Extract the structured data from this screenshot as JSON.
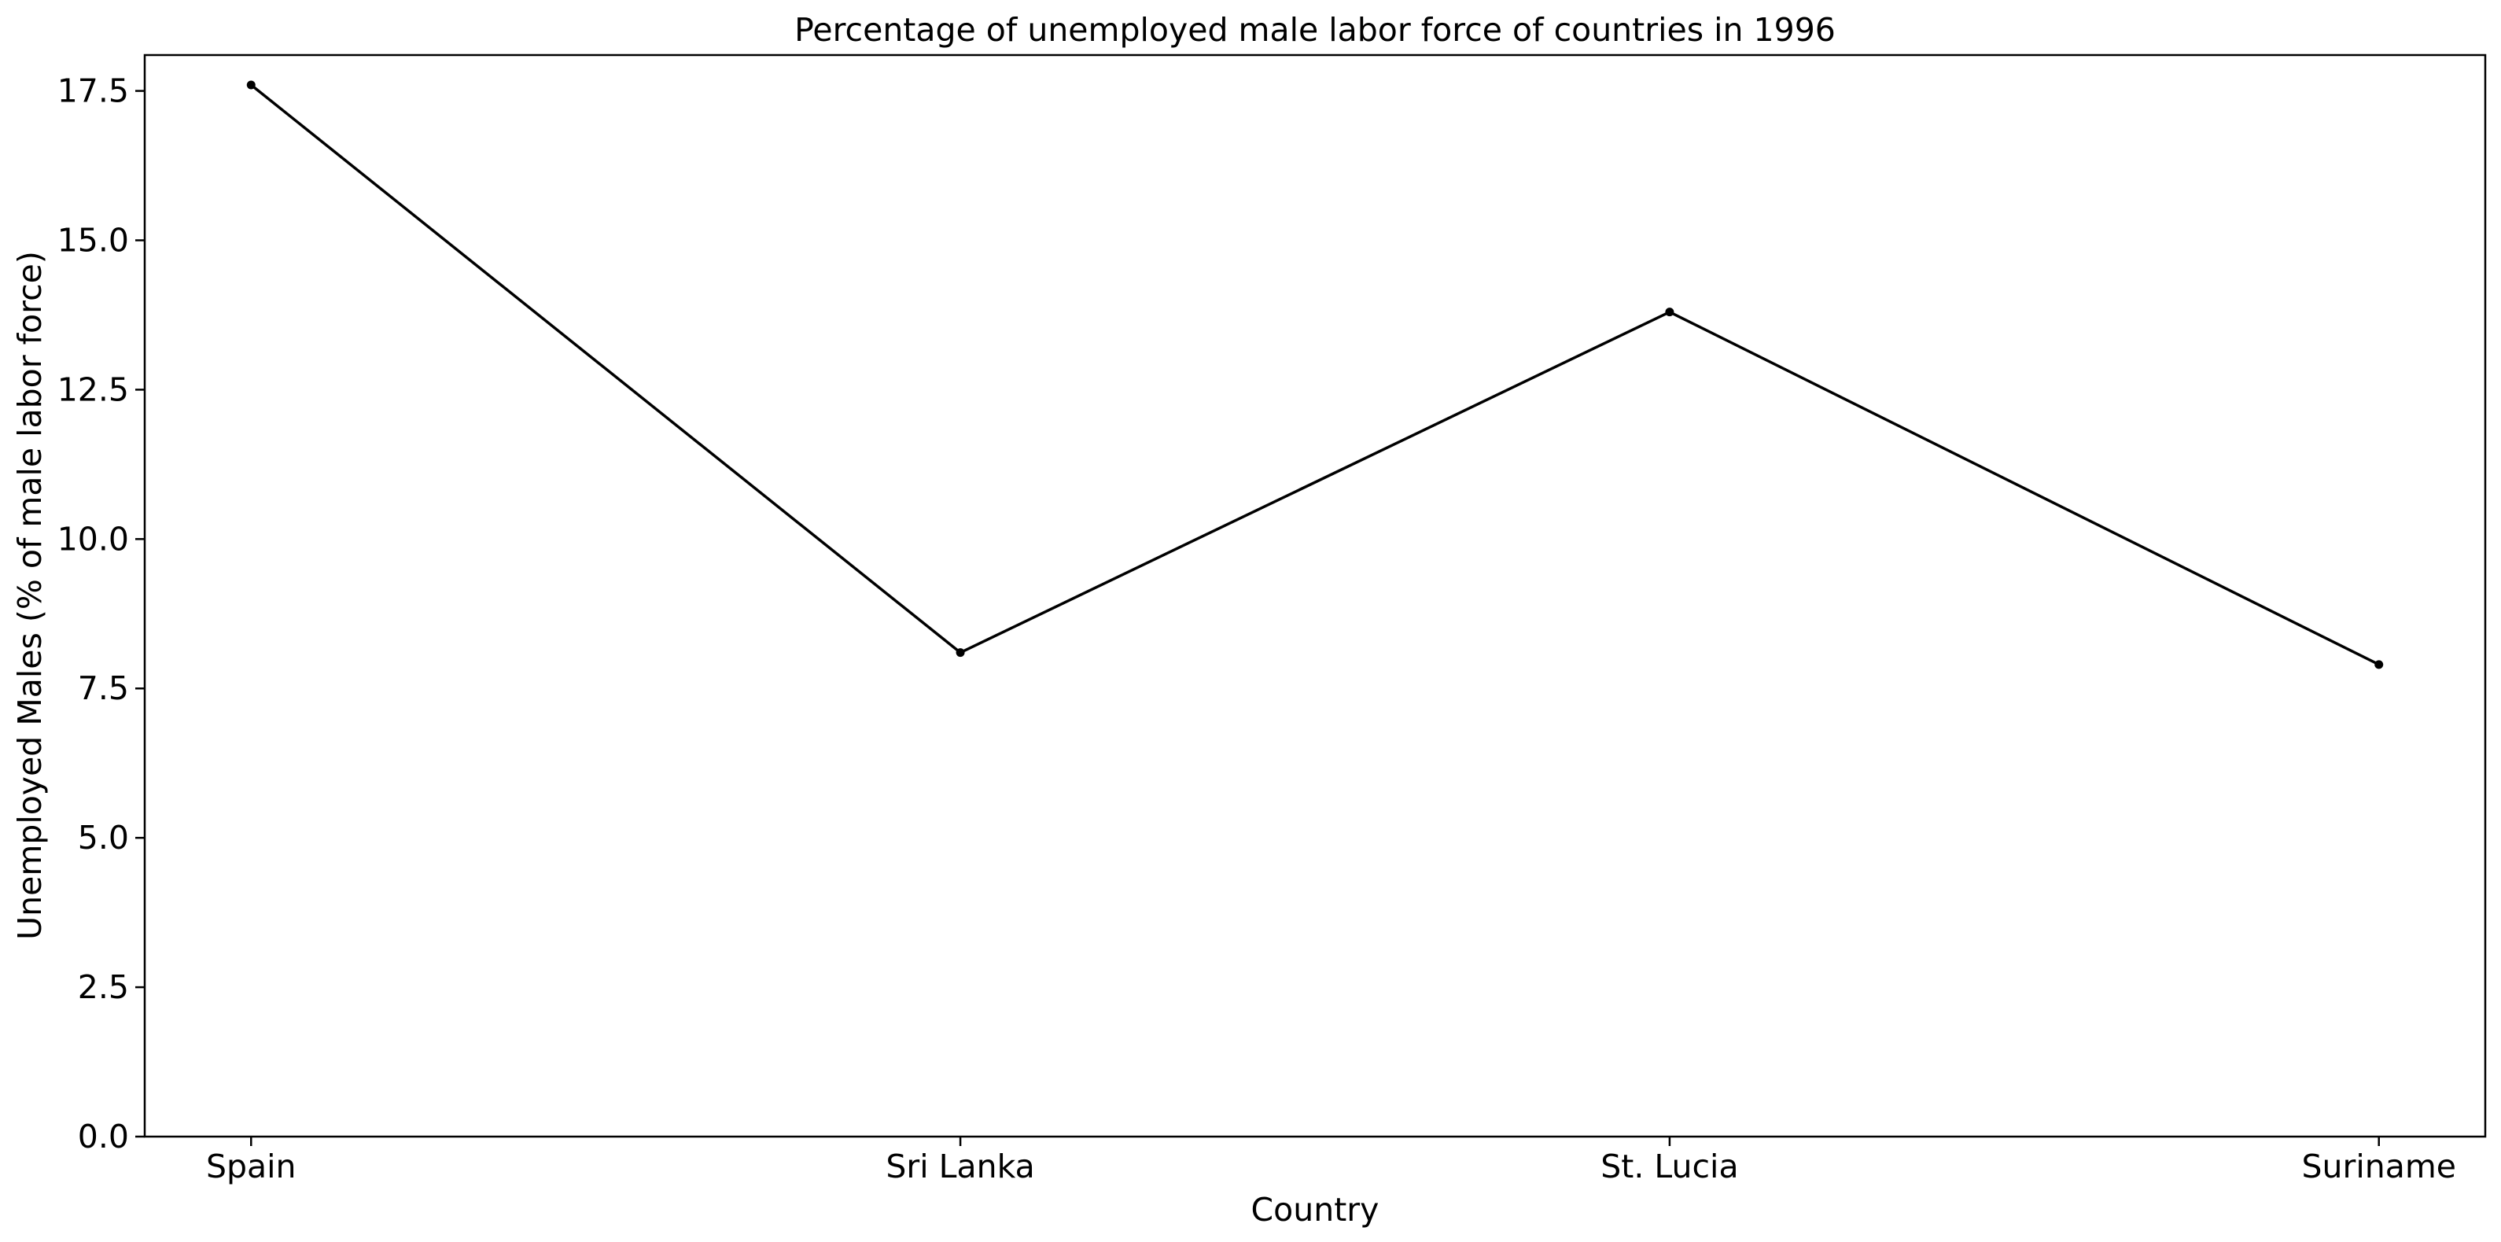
{
  "chart_data": {
    "type": "line",
    "title": "Percentage of unemployed male labor force of countries in 1996",
    "xlabel": "Country",
    "ylabel": "Unemployed Males (% of male labor force)",
    "categories": [
      "Spain",
      "Sri Lanka",
      "St. Lucia",
      "Suriname"
    ],
    "series": [
      {
        "values": [
          17.6,
          8.1,
          13.8,
          7.9
        ],
        "color": "#000000",
        "marker": "dot"
      }
    ],
    "ylim": [
      0,
      18.1
    ],
    "yticks": [
      0.0,
      2.5,
      5.0,
      7.5,
      10.0,
      12.5,
      15.0,
      17.5
    ],
    "ytick_labels": [
      "0.0",
      "2.5",
      "5.0",
      "7.5",
      "10.0",
      "12.5",
      "15.0",
      "17.5"
    ],
    "grid": false,
    "legend": "none"
  }
}
